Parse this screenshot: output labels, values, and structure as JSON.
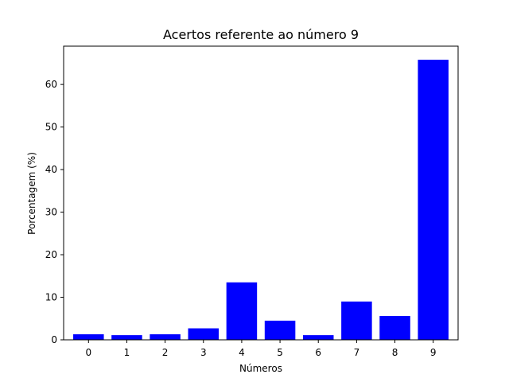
{
  "chart_data": {
    "type": "bar",
    "title": "Acertos referente ao número 9",
    "xlabel": "Números",
    "ylabel": "Porcentagem (%)",
    "categories": [
      "0",
      "1",
      "2",
      "3",
      "4",
      "5",
      "6",
      "7",
      "8",
      "9"
    ],
    "values": [
      1.3,
      1.1,
      1.3,
      2.7,
      13.5,
      4.5,
      1.1,
      9.0,
      5.6,
      65.8
    ],
    "yticks": [
      "0",
      "10",
      "20",
      "30",
      "40",
      "50",
      "60"
    ],
    "ylim": [
      0,
      69
    ],
    "grid": false,
    "bar_color": "#0000ff"
  }
}
